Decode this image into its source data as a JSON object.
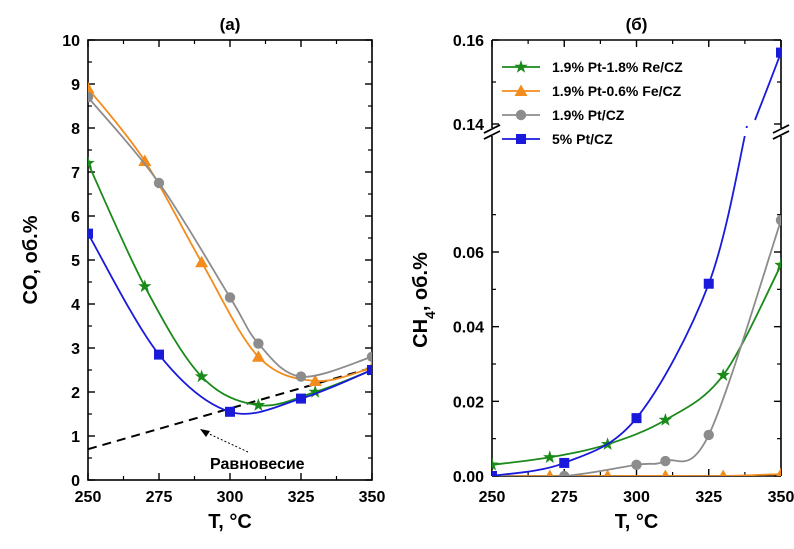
{
  "chart_data": [
    {
      "id": "a",
      "type": "line",
      "title": "(a)",
      "xlabel": "T, °C",
      "ylabel": "CO, об.%",
      "xlim": [
        250,
        350
      ],
      "ylim": [
        0,
        10
      ],
      "xticks": [
        "250",
        "275",
        "300",
        "325",
        "350"
      ],
      "yticks": [
        "0",
        "1",
        "2",
        "3",
        "4",
        "5",
        "6",
        "7",
        "8",
        "9",
        "10"
      ],
      "x": [
        250,
        275,
        300,
        325,
        350
      ],
      "series": [
        {
          "key": "re",
          "color": "#1a8a1a",
          "marker": "star",
          "x": [
            250,
            270,
            290,
            310,
            330,
            350
          ],
          "values": [
            7.2,
            4.4,
            2.35,
            1.7,
            2.0,
            2.5
          ]
        },
        {
          "key": "fe",
          "color": "#f28c1c",
          "marker": "triangle",
          "x": [
            250,
            270,
            290,
            310,
            330,
            350
          ],
          "values": [
            8.9,
            7.25,
            4.95,
            2.8,
            2.25,
            2.55
          ]
        },
        {
          "key": "pt",
          "color": "#8c8c8c",
          "marker": "circle",
          "x": [
            250,
            275,
            300,
            310,
            325,
            350
          ],
          "values": [
            8.7,
            6.75,
            4.15,
            3.1,
            2.35,
            2.8
          ]
        },
        {
          "key": "pt5",
          "color": "#1a1adb",
          "marker": "square",
          "x": [
            250,
            275,
            300,
            325,
            350
          ],
          "values": [
            5.6,
            2.85,
            1.55,
            1.85,
            2.5
          ]
        }
      ],
      "equilibrium": {
        "x": [
          250,
          350
        ],
        "values": [
          0.7,
          2.55
        ],
        "label": "Равновесие",
        "color": "#000000"
      }
    },
    {
      "id": "b",
      "type": "line",
      "title": "(б)",
      "xlabel": "T, °C",
      "ylabel_main": "CH",
      "ylabel_sub": "4",
      "ylabel_rest": ", об.%",
      "xlim": [
        250,
        350
      ],
      "ylim_lower": [
        0,
        0.09
      ],
      "ylim_upper": [
        0.14,
        0.16
      ],
      "xticks": [
        "250",
        "275",
        "300",
        "325",
        "350"
      ],
      "yticks_lower": [
        "0.00",
        "0.02",
        "0.04",
        "0.06"
      ],
      "yticks_upper": [
        "0.14",
        "0.16"
      ],
      "legend_position": "top-left",
      "series": [
        {
          "key": "re",
          "name": "1.9% Pt-1.8% Re/CZ",
          "color": "#1a8a1a",
          "marker": "star",
          "x": [
            250,
            270,
            290,
            310,
            330,
            350
          ],
          "values": [
            0.003,
            0.005,
            0.0085,
            0.015,
            0.027,
            0.0565
          ]
        },
        {
          "key": "fe",
          "name": "1.9% Pt-0.6% Fe/CZ",
          "color": "#f28c1c",
          "marker": "triangle",
          "x": [
            250,
            270,
            290,
            310,
            330,
            350
          ],
          "values": [
            0.0,
            0.0,
            0.0,
            0.0,
            0.0,
            0.0005
          ]
        },
        {
          "key": "pt",
          "name": "1.9% Pt/CZ",
          "color": "#8c8c8c",
          "marker": "circle",
          "x": [
            250,
            275,
            300,
            310,
            325,
            350
          ],
          "values": [
            0.0,
            0.0,
            0.003,
            0.004,
            0.011,
            0.0685
          ]
        },
        {
          "key": "pt5",
          "name": "5% Pt/CZ",
          "color": "#1a1adb",
          "marker": "square",
          "x": [
            250,
            275,
            300,
            325,
            350
          ],
          "values": [
            0.0,
            0.0035,
            0.0155,
            0.0515,
            0.157
          ]
        }
      ]
    }
  ]
}
